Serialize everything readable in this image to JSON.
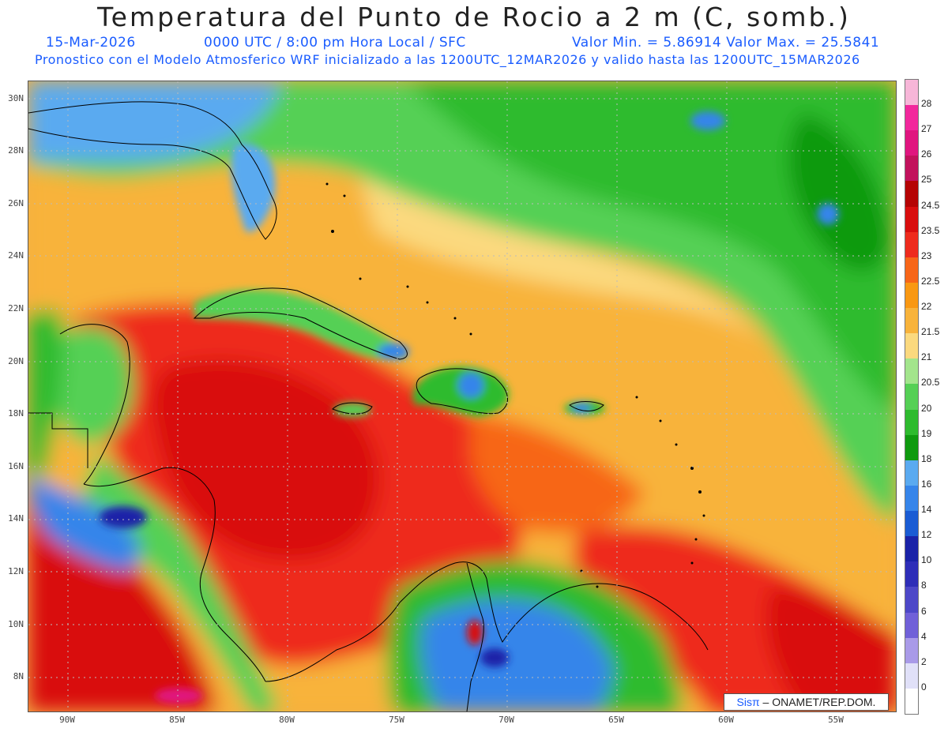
{
  "title": "Temperatura del Punto de Rocio a 2 m (C, somb.)",
  "info_line": {
    "date": "15-Mar-2026",
    "time": "0000 UTC / 8:00 pm Hora Local / SFC",
    "minmax": "Valor Min. = 5.86914  Valor Max. = 25.5841"
  },
  "model_line": "Pronostico con el Modelo Atmosferico WRF inicializado a las 1200UTC_12MAR2026 y valido hasta las  1200UTC_15MAR2026",
  "lat_labels": [
    "30N",
    "28N",
    "26N",
    "24N",
    "22N",
    "20N",
    "18N",
    "16N",
    "14N",
    "12N",
    "10N",
    "8N"
  ],
  "lon_labels": [
    "90W",
    "85W",
    "80W",
    "75W",
    "70W",
    "65W",
    "60W",
    "55W"
  ],
  "colorbar": {
    "labels": [
      "28",
      "27",
      "26",
      "25",
      "24.5",
      "23.5",
      "23",
      "22.5",
      "22",
      "21.5",
      "21",
      "20.5",
      "20",
      "19",
      "18",
      "16",
      "14",
      "12",
      "10",
      "8",
      "6",
      "4",
      "2",
      "0"
    ],
    "colors": [
      "#f7b6d8",
      "#f2279c",
      "#e0157f",
      "#c2125c",
      "#b50404",
      "#d90e0e",
      "#ee2b1d",
      "#f76618",
      "#f99812",
      "#f8b33b",
      "#fbd97e",
      "#a3e58c",
      "#55d055",
      "#2ebb2e",
      "#0f9a0f",
      "#5aaaf0",
      "#3685ea",
      "#1a5cd4",
      "#1a23a8",
      "#2e2eb8",
      "#4d48c8",
      "#7060d8",
      "#a99ae8",
      "#e0e0f8"
    ]
  },
  "credit": {
    "logo": "Sisπ",
    "text": " – ONAMET/REP.DOM."
  }
}
